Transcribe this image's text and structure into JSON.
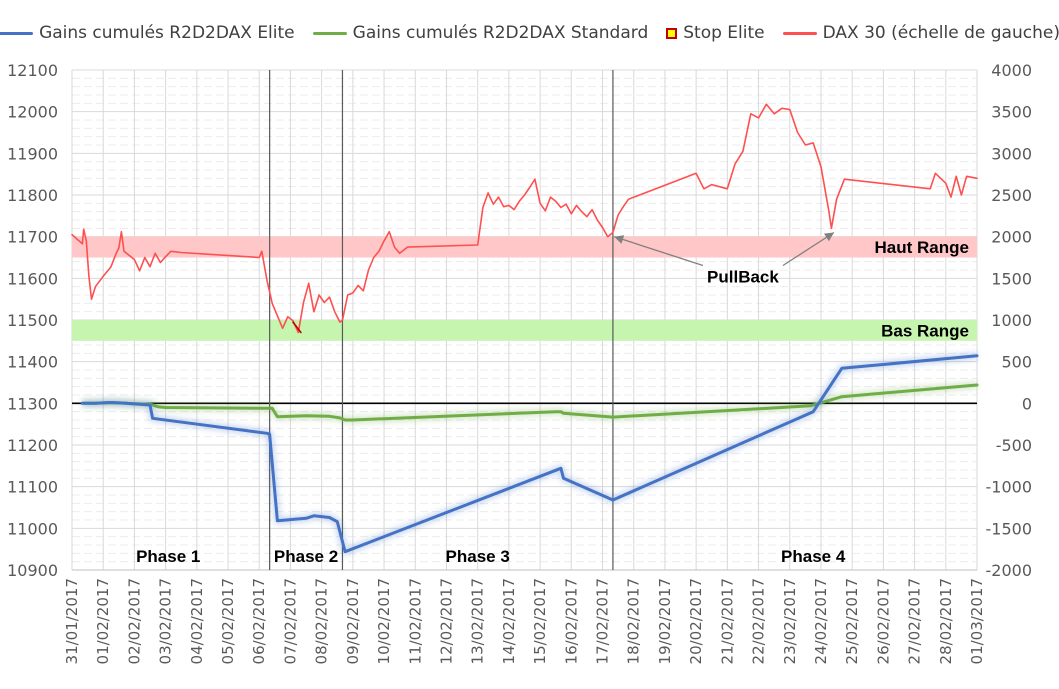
{
  "chart_data": {
    "type": "line",
    "legend": [
      {
        "label": "Gains cumulés R2D2DAX Elite",
        "color": "#4472c4",
        "kind": "line"
      },
      {
        "label": "Gains cumulés R2D2DAX Standard",
        "color": "#70ad47",
        "kind": "line"
      },
      {
        "label": "Stop Elite",
        "color": "#c00000",
        "kind": "marker"
      },
      {
        "label": "DAX 30 (échelle de gauche)",
        "color": "#ff5050",
        "kind": "line"
      }
    ],
    "legend_position": "top",
    "grid": true,
    "x_domain": [
      "31/01/2017",
      "01/03/2017"
    ],
    "x_tick_labels": [
      "31/01/2017",
      "01/02/2017",
      "02/02/2017",
      "03/02/2017",
      "04/02/2017",
      "05/02/2017",
      "06/02/2017",
      "07/02/2017",
      "08/02/2017",
      "09/02/2017",
      "10/02/2017",
      "11/02/2017",
      "12/02/2017",
      "13/02/2017",
      "14/02/2017",
      "15/02/2017",
      "16/02/2017",
      "17/02/2017",
      "18/02/2017",
      "19/02/2017",
      "20/02/2017",
      "21/02/2017",
      "22/02/2017",
      "23/02/2017",
      "24/02/2017",
      "25/02/2017",
      "26/02/2017",
      "27/02/2017",
      "28/02/2017",
      "01/03/2017"
    ],
    "y_left": {
      "min": 10900,
      "max": 12100,
      "step": 100,
      "ticks": [
        "10900",
        "11000",
        "11100",
        "11200",
        "11300",
        "11400",
        "11500",
        "11600",
        "11700",
        "11800",
        "11900",
        "12000",
        "12100"
      ]
    },
    "y_right": {
      "min": -2000,
      "max": 4000,
      "step": 500,
      "ticks": [
        "-2000",
        "-1500",
        "-1000",
        "-500",
        "0",
        "500",
        "1000",
        "1500",
        "2000",
        "2500",
        "3000",
        "3500",
        "4000"
      ]
    },
    "bands": [
      {
        "label": "Haut Range",
        "y0": 11650,
        "y1": 11700,
        "axis": "left",
        "color": "#ffc7c7"
      },
      {
        "label": "Bas Range",
        "y0": 11450,
        "y1": 11500,
        "axis": "left",
        "color": "#c6f5b0"
      }
    ],
    "vlines": [
      "06/02/2017 08:00",
      "08/02/2017 16:00",
      "17/02/2017 08:00"
    ],
    "phases": [
      {
        "label": "Phase 1",
        "x": "03/02/2017 02:00"
      },
      {
        "label": "Phase 2",
        "x": "07/02/2017 12:00"
      },
      {
        "label": "Phase 3",
        "x": "13/02/2017 00:00"
      },
      {
        "label": "Phase 4",
        "x": "23/02/2017 18:00"
      }
    ],
    "annotation": {
      "label": "PullBack",
      "x": "21/02/2017 12:00",
      "y": 11590,
      "targets": [
        {
          "x": "17/02/2017 09:00",
          "y": 11700
        },
        {
          "x": "24/02/2017 10:00",
          "y": 11710
        }
      ]
    },
    "series": [
      {
        "name": "DAX 30 (échelle de gauche)",
        "axis": "left",
        "color": "#ff5050",
        "points": [
          [
            "31/01/2017 00:00",
            11705
          ],
          [
            "31/01/2017 08:00",
            11683
          ],
          [
            "31/01/2017 09:00",
            11718
          ],
          [
            "31/01/2017 11:00",
            11690
          ],
          [
            "31/01/2017 13:00",
            11605
          ],
          [
            "31/01/2017 15:00",
            11550
          ],
          [
            "31/01/2017 18:00",
            11580
          ],
          [
            "01/02/2017 00:00",
            11605
          ],
          [
            "01/02/2017 06:00",
            11628
          ],
          [
            "01/02/2017 10:00",
            11660
          ],
          [
            "01/02/2017 12:00",
            11672
          ],
          [
            "01/02/2017 14:00",
            11712
          ],
          [
            "01/02/2017 16:00",
            11665
          ],
          [
            "01/02/2017 20:00",
            11655
          ],
          [
            "02/02/2017 00:00",
            11645
          ],
          [
            "02/02/2017 04:00",
            11618
          ],
          [
            "02/02/2017 08:00",
            11650
          ],
          [
            "02/02/2017 12:00",
            11628
          ],
          [
            "02/02/2017 16:00",
            11660
          ],
          [
            "02/02/2017 20:00",
            11638
          ],
          [
            "03/02/2017 00:00",
            11652
          ],
          [
            "03/02/2017 04:00",
            11665
          ],
          [
            "03/02/2017 12:00",
            11662
          ],
          [
            "06/02/2017 00:00",
            11650
          ],
          [
            "06/02/2017 02:00",
            11665
          ],
          [
            "06/02/2017 06:00",
            11595
          ],
          [
            "06/02/2017 10:00",
            11540
          ],
          [
            "06/02/2017 14:00",
            11510
          ],
          [
            "06/02/2017 18:00",
            11480
          ],
          [
            "06/02/2017 22:00",
            11508
          ],
          [
            "07/02/2017 02:00",
            11498
          ],
          [
            "07/02/2017 06:00",
            11470
          ],
          [
            "07/02/2017 10:00",
            11542
          ],
          [
            "07/02/2017 14:00",
            11588
          ],
          [
            "07/02/2017 18:00",
            11520
          ],
          [
            "07/02/2017 22:00",
            11560
          ],
          [
            "08/02/2017 02:00",
            11542
          ],
          [
            "08/02/2017 06:00",
            11555
          ],
          [
            "08/02/2017 10:00",
            11520
          ],
          [
            "08/02/2017 14:00",
            11495
          ],
          [
            "08/02/2017 16:00",
            11500
          ],
          [
            "08/02/2017 20:00",
            11560
          ],
          [
            "09/02/2017 00:00",
            11565
          ],
          [
            "09/02/2017 04:00",
            11583
          ],
          [
            "09/02/2017 08:00",
            11570
          ],
          [
            "09/02/2017 12:00",
            11620
          ],
          [
            "09/02/2017 16:00",
            11650
          ],
          [
            "09/02/2017 20:00",
            11665
          ],
          [
            "10/02/2017 00:00",
            11690
          ],
          [
            "10/02/2017 04:00",
            11712
          ],
          [
            "10/02/2017 08:00",
            11675
          ],
          [
            "10/02/2017 12:00",
            11660
          ],
          [
            "10/02/2017 18:00",
            11675
          ],
          [
            "13/02/2017 00:00",
            11680
          ],
          [
            "13/02/2017 04:00",
            11770
          ],
          [
            "13/02/2017 08:00",
            11805
          ],
          [
            "13/02/2017 12:00",
            11778
          ],
          [
            "13/02/2017 16:00",
            11795
          ],
          [
            "13/02/2017 20:00",
            11772
          ],
          [
            "14/02/2017 00:00",
            11775
          ],
          [
            "14/02/2017 04:00",
            11765
          ],
          [
            "14/02/2017 08:00",
            11785
          ],
          [
            "14/02/2017 12:00",
            11800
          ],
          [
            "14/02/2017 16:00",
            11818
          ],
          [
            "14/02/2017 20:00",
            11838
          ],
          [
            "15/02/2017 00:00",
            11780
          ],
          [
            "15/02/2017 04:00",
            11762
          ],
          [
            "15/02/2017 08:00",
            11795
          ],
          [
            "15/02/2017 12:00",
            11785
          ],
          [
            "15/02/2017 16:00",
            11770
          ],
          [
            "15/02/2017 20:00",
            11778
          ],
          [
            "16/02/2017 00:00",
            11755
          ],
          [
            "16/02/2017 04:00",
            11775
          ],
          [
            "16/02/2017 08:00",
            11760
          ],
          [
            "16/02/2017 12:00",
            11748
          ],
          [
            "16/02/2017 16:00",
            11765
          ],
          [
            "16/02/2017 20:00",
            11740
          ],
          [
            "17/02/2017 00:00",
            11722
          ],
          [
            "17/02/2017 04:00",
            11700
          ],
          [
            "17/02/2017 08:00",
            11710
          ],
          [
            "17/02/2017 12:00",
            11752
          ],
          [
            "17/02/2017 16:00",
            11772
          ],
          [
            "17/02/2017 20:00",
            11790
          ],
          [
            "20/02/2017 00:00",
            11852
          ],
          [
            "20/02/2017 06:00",
            11815
          ],
          [
            "20/02/2017 12:00",
            11825
          ],
          [
            "20/02/2017 18:00",
            11820
          ],
          [
            "21/02/2017 00:00",
            11815
          ],
          [
            "21/02/2017 06:00",
            11875
          ],
          [
            "21/02/2017 12:00",
            11905
          ],
          [
            "21/02/2017 18:00",
            11995
          ],
          [
            "22/02/2017 00:00",
            11985
          ],
          [
            "22/02/2017 06:00",
            12018
          ],
          [
            "22/02/2017 12:00",
            11995
          ],
          [
            "22/02/2017 18:00",
            12008
          ],
          [
            "23/02/2017 00:00",
            12005
          ],
          [
            "23/02/2017 06:00",
            11950
          ],
          [
            "23/02/2017 12:00",
            11920
          ],
          [
            "23/02/2017 18:00",
            11925
          ],
          [
            "24/02/2017 00:00",
            11868
          ],
          [
            "24/02/2017 06:00",
            11762
          ],
          [
            "24/02/2017 08:00",
            11720
          ],
          [
            "24/02/2017 12:00",
            11790
          ],
          [
            "24/02/2017 18:00",
            11838
          ],
          [
            "27/02/2017 12:00",
            11815
          ],
          [
            "27/02/2017 16:00",
            11852
          ],
          [
            "28/02/2017 00:00",
            11828
          ],
          [
            "28/02/2017 04:00",
            11795
          ],
          [
            "28/02/2017 08:00",
            11845
          ],
          [
            "28/02/2017 12:00",
            11800
          ],
          [
            "28/02/2017 16:00",
            11845
          ],
          [
            "01/03/2017 00:00",
            11840
          ]
        ]
      },
      {
        "name": "Stop Elite",
        "axis": "left",
        "color": "#c00000",
        "points": [
          [
            "07/02/2017 02:00",
            11495
          ],
          [
            "07/02/2017 08:00",
            11470
          ]
        ]
      },
      {
        "name": "Gains cumulés R2D2DAX Standard",
        "axis": "right",
        "color": "#70ad47",
        "points": [
          [
            "31/01/2017 08:00",
            0
          ],
          [
            "31/01/2017 18:00",
            0
          ],
          [
            "01/02/2017 06:00",
            10
          ],
          [
            "01/02/2017 18:00",
            0
          ],
          [
            "02/02/2017 12:00",
            -10
          ],
          [
            "02/02/2017 18:00",
            -40
          ],
          [
            "03/02/2017 00:00",
            -50
          ],
          [
            "06/02/2017 06:00",
            -60
          ],
          [
            "06/02/2017 10:00",
            -60
          ],
          [
            "06/02/2017 14:00",
            -160
          ],
          [
            "07/02/2017 12:00",
            -150
          ],
          [
            "08/02/2017 06:00",
            -155
          ],
          [
            "08/02/2017 14:00",
            -175
          ],
          [
            "08/02/2017 18:00",
            -200
          ],
          [
            "09/02/2017 00:00",
            -200
          ],
          [
            "15/02/2017 12:00",
            -100
          ],
          [
            "15/02/2017 16:00",
            -100
          ],
          [
            "15/02/2017 18:00",
            -120
          ],
          [
            "17/02/2017 08:00",
            -165
          ],
          [
            "23/02/2017 16:00",
            -30
          ],
          [
            "24/02/2017 16:00",
            80
          ],
          [
            "01/03/2017 00:00",
            220
          ]
        ]
      },
      {
        "name": "Gains cumulés R2D2DAX Elite",
        "axis": "right",
        "color": "#4472c4",
        "points": [
          [
            "31/01/2017 08:00",
            0
          ],
          [
            "31/01/2017 18:00",
            0
          ],
          [
            "01/02/2017 06:00",
            10
          ],
          [
            "01/02/2017 18:00",
            0
          ],
          [
            "02/02/2017 12:00",
            -20
          ],
          [
            "02/02/2017 14:00",
            -180
          ],
          [
            "06/02/2017 06:00",
            -360
          ],
          [
            "06/02/2017 08:00",
            -370
          ],
          [
            "06/02/2017 14:00",
            -1410
          ],
          [
            "07/02/2017 12:00",
            -1380
          ],
          [
            "07/02/2017 18:00",
            -1350
          ],
          [
            "08/02/2017 06:00",
            -1370
          ],
          [
            "08/02/2017 12:00",
            -1420
          ],
          [
            "08/02/2017 18:00",
            -1780
          ],
          [
            "15/02/2017 16:00",
            -780
          ],
          [
            "15/02/2017 18:00",
            -900
          ],
          [
            "17/02/2017 08:00",
            -1160
          ],
          [
            "23/02/2017 18:00",
            -100
          ],
          [
            "24/02/2017 16:00",
            420
          ],
          [
            "01/03/2017 00:00",
            570
          ]
        ]
      }
    ]
  }
}
